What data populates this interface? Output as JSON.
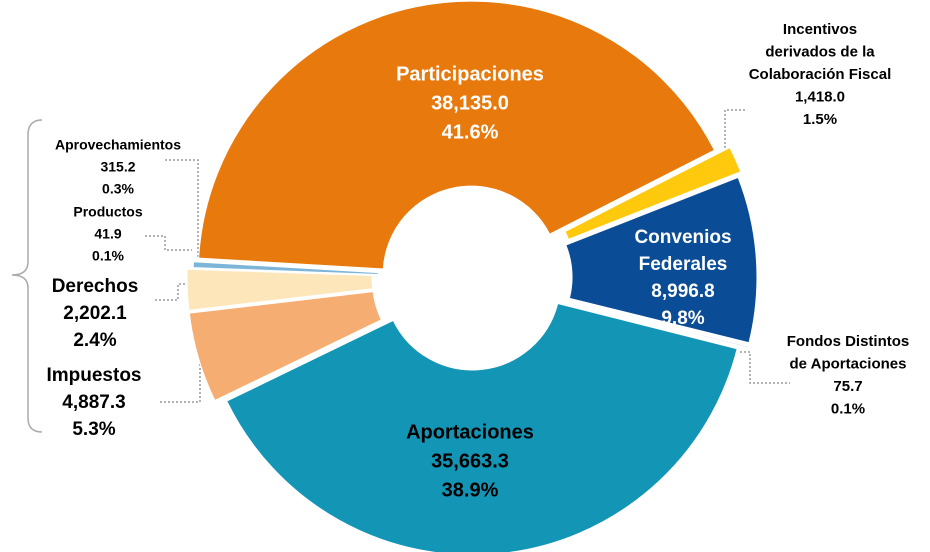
{
  "chart_data": {
    "type": "donut",
    "categories": [
      [
        "Participaciones"
      ],
      [
        "Incentivos",
        "derivados de la",
        "Colaboración Fiscal"
      ],
      [
        "Convenios",
        "Federales"
      ],
      [
        "Fondos Distintos",
        "de Aportaciones"
      ],
      [
        "Aportaciones"
      ],
      [
        "Impuestos"
      ],
      [
        "Derechos"
      ],
      [
        "Productos"
      ],
      [
        "Aprovechamientos"
      ]
    ],
    "values": [
      38135.0,
      1418.0,
      8996.8,
      75.7,
      35663.3,
      4887.3,
      2202.1,
      41.9,
      315.2
    ],
    "value_labels": [
      "38,135.0",
      "1,418.0",
      "8,996.8",
      "75.7",
      "35,663.3",
      "4,887.3",
      "2,202.1",
      "41.9",
      "315.2"
    ],
    "percent_labels": [
      "41.6%",
      "1.5%",
      "9.8%",
      "0.1%",
      "38.9%",
      "5.3%",
      "2.4%",
      "0.1%",
      "0.3%"
    ],
    "colors": [
      "#e8790c",
      "#ffc90e",
      "#0b4c96",
      "#c9d5e2",
      "#1395b5",
      "#f5ad72",
      "#fde7ba",
      "#a3c6e2",
      "#7db5d9"
    ]
  }
}
